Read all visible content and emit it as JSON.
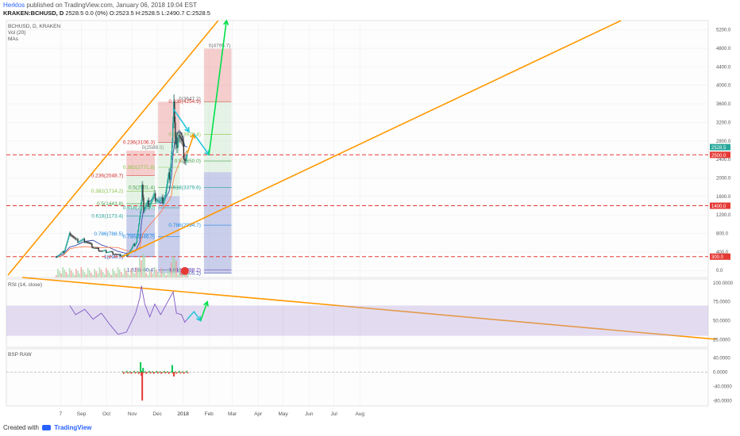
{
  "header": {
    "author": "Herklos",
    "published": "published on TradingView.com, January 06, 2018 19:04 EST",
    "symbol_line": "KRAKEN:BCHUSD, D",
    "ohlc": "2528.5 0.0 (0%) O:2523.5 H:2528.5 L:2490.7 C:2528.5"
  },
  "footer": {
    "created_with": "Created with",
    "brand": "TradingView"
  },
  "chart_data": {
    "type": "candlestick",
    "symbol": "BCHUSD, D, KRAKEN",
    "indicators_main": [
      "Vol (20)",
      "MAs"
    ],
    "x_tick_labels": [
      "7",
      "Sep",
      "Oct",
      "Nov",
      "Dec",
      "2018",
      "Feb",
      "Mar",
      "Apr",
      "May",
      "Jun",
      "Jul",
      "Aug"
    ],
    "y_tick_labels": [
      "5200.0",
      "4800.0",
      "4400.0",
      "4000.0",
      "3600.0",
      "3200.0",
      "2800.0",
      "2400.0",
      "2000.0",
      "1600.0",
      "1200.0",
      "800.0",
      "400.0",
      "0.0"
    ],
    "y_range": [
      -150,
      5400
    ],
    "last_price": "2528.5",
    "horizontal_levels": [
      {
        "label": "2500.0",
        "value": 2500,
        "color": "#e53935"
      },
      {
        "label": "1400.0",
        "value": 1400,
        "color": "#e53935"
      },
      {
        "label": "300.0",
        "value": 300,
        "color": "#e53935"
      }
    ],
    "price_path": [
      {
        "x": "Aug 01",
        "y": 300
      },
      {
        "x": "Aug 10",
        "y": 400
      },
      {
        "x": "Aug 18",
        "y": 820
      },
      {
        "x": "Aug 25",
        "y": 640
      },
      {
        "x": "Sep 05",
        "y": 650
      },
      {
        "x": "Sep 15",
        "y": 500
      },
      {
        "x": "Sep 25",
        "y": 420
      },
      {
        "x": "Oct 05",
        "y": 400
      },
      {
        "x": "Oct 15",
        "y": 330
      },
      {
        "x": "Oct 25",
        "y": 330
      },
      {
        "x": "Nov 05",
        "y": 620
      },
      {
        "x": "Nov 10",
        "y": 1200
      },
      {
        "x": "Nov 12",
        "y": 1950
      },
      {
        "x": "Nov 14",
        "y": 1300
      },
      {
        "x": "Nov 20",
        "y": 1450
      },
      {
        "x": "Nov 28",
        "y": 1600
      },
      {
        "x": "Dec 05",
        "y": 1450
      },
      {
        "x": "Dec 10",
        "y": 1650
      },
      {
        "x": "Dec 15",
        "y": 2100
      },
      {
        "x": "Dec 18",
        "y": 2800
      },
      {
        "x": "Dec 20",
        "y": 3600
      },
      {
        "x": "Dec 22",
        "y": 2600
      },
      {
        "x": "Dec 26",
        "y": 3000
      },
      {
        "x": "Dec 30",
        "y": 2700
      },
      {
        "x": "Jan 03",
        "y": 2450
      },
      {
        "x": "Jan 06",
        "y": 2528
      }
    ],
    "fib_sets": [
      {
        "top_label": "0(2589.9)",
        "levels": [
          {
            "label": "0.236(2048.7)"
          },
          {
            "label": "0.382(1714.2)"
          },
          {
            "label": "0.5(1443.8)"
          },
          {
            "label": "0.618(1173.4)"
          },
          {
            "label": "0.786(788.5)"
          },
          {
            "label": "1(298.5)"
          }
        ]
      },
      {
        "top_label": "0(3647.2)",
        "levels": [
          {
            "label": "0.236(3106.3)"
          },
          {
            "label": "0.382(2771.8)"
          },
          {
            "label": "0.5(2501.4)"
          },
          {
            "label": "0.618(2231.0)"
          },
          {
            "label": "0.786(1846.0)"
          },
          {
            "label": "1.618(-60.4)"
          }
        ]
      },
      {
        "top_label": "0(4795.7)",
        "levels": [
          {
            "label": "0.236(4254.9)"
          },
          {
            "label": "0.382(3920.4)"
          },
          {
            "label": "0.5(3650.0)"
          },
          {
            "label": "0.618(3379.6)"
          },
          {
            "label": "0.786(2994.7)"
          },
          {
            "label": "1(2505.1)"
          },
          {
            "label": "1.618(1088.2)"
          }
        ]
      }
    ],
    "rsi": {
      "label": "RSI (14, close)",
      "y_tick_labels": [
        "100.0000",
        "75.0000",
        "50.0000",
        "25.0000"
      ],
      "band": [
        30,
        70
      ],
      "values": [
        {
          "x": "Aug 18",
          "y": 70
        },
        {
          "x": "Aug 25",
          "y": 58
        },
        {
          "x": "Sep 05",
          "y": 65
        },
        {
          "x": "Sep 15",
          "y": 52
        },
        {
          "x": "Sep 25",
          "y": 60
        },
        {
          "x": "Oct 05",
          "y": 45
        },
        {
          "x": "Oct 15",
          "y": 32
        },
        {
          "x": "Oct 25",
          "y": 35
        },
        {
          "x": "Nov 05",
          "y": 60
        },
        {
          "x": "Nov 10",
          "y": 80
        },
        {
          "x": "Nov 12",
          "y": 96
        },
        {
          "x": "Nov 16",
          "y": 72
        },
        {
          "x": "Nov 22",
          "y": 55
        },
        {
          "x": "Nov 28",
          "y": 72
        },
        {
          "x": "Dec 05",
          "y": 58
        },
        {
          "x": "Dec 12",
          "y": 72
        },
        {
          "x": "Dec 20",
          "y": 88
        },
        {
          "x": "Dec 24",
          "y": 60
        },
        {
          "x": "Dec 30",
          "y": 58
        },
        {
          "x": "Jan 03",
          "y": 48
        },
        {
          "x": "Jan 06",
          "y": 52
        }
      ]
    },
    "bsp": {
      "label": "BSP RAW",
      "y_tick_labels": [
        "40.0000",
        "0.0000",
        "-40.0000",
        "-80.0000"
      ],
      "spikes": [
        {
          "x": "Nov 10",
          "y": 28
        },
        {
          "x": "Nov 11",
          "y": -10
        },
        {
          "x": "Nov 12",
          "y": -80
        },
        {
          "x": "Nov 13",
          "y": 12
        },
        {
          "x": "Dec 18",
          "y": 20
        },
        {
          "x": "Dec 20",
          "y": -12
        }
      ]
    },
    "colors": {
      "up_arrow": "#00e04b",
      "trend_line": "#ff9800",
      "projection": "#26c6da",
      "level": "#e53935"
    }
  }
}
